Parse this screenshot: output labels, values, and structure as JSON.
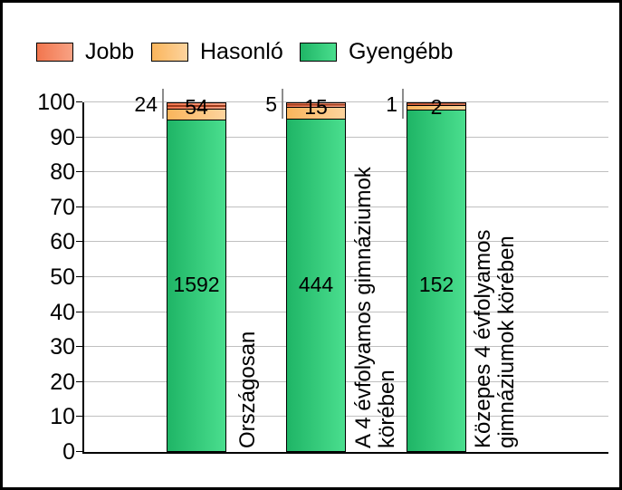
{
  "frame": {
    "border_color": "#000000",
    "background": "#FFFFFF"
  },
  "legend": {
    "position": "top-left",
    "items": [
      {
        "label": "Jobb"
      },
      {
        "label": "Hasonló"
      },
      {
        "label": "Gyengébb"
      }
    ]
  },
  "chart_data": {
    "type": "bar",
    "stacked": true,
    "orientation": "vertical",
    "title": "",
    "xlabel": "",
    "ylabel": "",
    "unit": "segment heights are each count's percentage share of the category total; labels show raw counts",
    "categories": [
      {
        "label": "Országosan",
        "label_lines": [
          "Országosan"
        ]
      },
      {
        "label": "A 4 évfolyamos gimnáziumok körében",
        "label_lines": [
          "A 4 évfolyamos gimnáziumok",
          "körében"
        ]
      },
      {
        "label": "Közepes 4 évfolyamos gimnáziumok körében",
        "label_lines": [
          "Közepes 4 évfolyamos",
          "gimnáziumok körében"
        ]
      }
    ],
    "series": [
      {
        "name": "Jobb",
        "values": [
          24,
          5,
          1
        ],
        "color": {
          "start": "#F2764E",
          "end": "#F8A284",
          "stripe": "#9E3A1B"
        }
      },
      {
        "name": "Hasonló",
        "values": [
          54,
          15,
          2
        ],
        "color": {
          "start": "#FAB55C",
          "end": "#FDD49E"
        }
      },
      {
        "name": "Gyengébb",
        "values": [
          1592,
          444,
          152
        ],
        "color": {
          "start": "#1FB566",
          "end": "#4ADE8E"
        }
      }
    ],
    "value_axis": {
      "min": 0,
      "max": 100,
      "step": 10,
      "tick_labels": [
        "0",
        "10",
        "20",
        "30",
        "40",
        "50",
        "60",
        "70",
        "80",
        "90",
        "100"
      ]
    },
    "grid": {
      "show": true,
      "color": "#C0C0C0"
    },
    "legend_position": "top-left"
  }
}
